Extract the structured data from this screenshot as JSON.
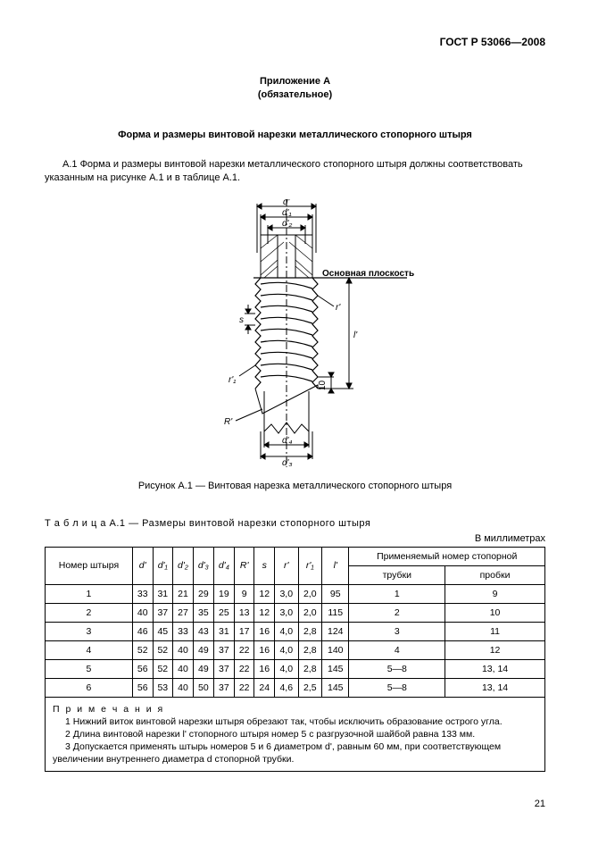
{
  "doc_id": "ГОСТ  Р 53066—2008",
  "appendix": {
    "line1": "Приложение А",
    "line2": "(обязательное)"
  },
  "title": "Форма и размеры винтовой нарезки металлического стопорного штыря",
  "intro": "А.1  Форма и размеры винтовой нарезки металлического стопорного штыря должны соответствовать указанным на рисунке А.1 и в таблице А.1.",
  "figure": {
    "caption": "Рисунок А.1 — Винтовая нарезка металлического стопорного штыря",
    "labels": {
      "d": "d'",
      "d1": "d'₁",
      "d2": "d'₂",
      "d3": "d'₃",
      "d4": "d'₄",
      "lprime": "l'",
      "r": "r'",
      "r1": "r'₁",
      "Rprime": "R'",
      "s": "s",
      "ten": "10",
      "plane": "Основная плоскость"
    }
  },
  "table": {
    "caption": "Т а б л и ц а   А.1 — Размеры винтовой нарезки стопорного штыря",
    "units": "В миллиметрах",
    "headers": {
      "col1": "Номер штыря",
      "col2": "d'",
      "col3": "d'₁",
      "col4": "d'₂",
      "col5": "d'₃",
      "col6": "d'₄",
      "col7": "R'",
      "col8": "s",
      "col9": "r'",
      "col10": "r'₁",
      "col11": "l'",
      "col12_top": "Применяемый номер стопорной",
      "col12a": "трубки",
      "col12b": "пробки"
    },
    "rows": [
      [
        "1",
        "33",
        "31",
        "21",
        "29",
        "19",
        "9",
        "12",
        "3,0",
        "2,0",
        "95",
        "1",
        "9"
      ],
      [
        "2",
        "40",
        "37",
        "27",
        "35",
        "25",
        "13",
        "12",
        "3,0",
        "2,0",
        "115",
        "2",
        "10"
      ],
      [
        "3",
        "46",
        "45",
        "33",
        "43",
        "31",
        "17",
        "16",
        "4,0",
        "2,8",
        "124",
        "3",
        "11"
      ],
      [
        "4",
        "52",
        "52",
        "40",
        "49",
        "37",
        "22",
        "16",
        "4,0",
        "2,8",
        "140",
        "4",
        "12"
      ],
      [
        "5",
        "56",
        "52",
        "40",
        "49",
        "37",
        "22",
        "16",
        "4,0",
        "2,8",
        "145",
        "5—8",
        "13, 14"
      ],
      [
        "6",
        "56",
        "53",
        "40",
        "50",
        "37",
        "22",
        "24",
        "4,6",
        "2,5",
        "145",
        "5—8",
        "13, 14"
      ]
    ]
  },
  "notes": {
    "title": "П р и м е ч а н и я",
    "items": [
      "1  Нижний виток винтовой нарезки штыря обрезают так, чтобы исключить образование острого угла.",
      "2  Длина винтовой нарезки l' стопорного штыря номер 5 с разгрузочной шайбой равна 133 мм.",
      "3  Допускается применять штырь номеров 5 и 6 диаметром d', равным 60 мм, при соответствующем увеличении внутреннего диаметра d стопорной трубки."
    ]
  },
  "page_number": "21"
}
